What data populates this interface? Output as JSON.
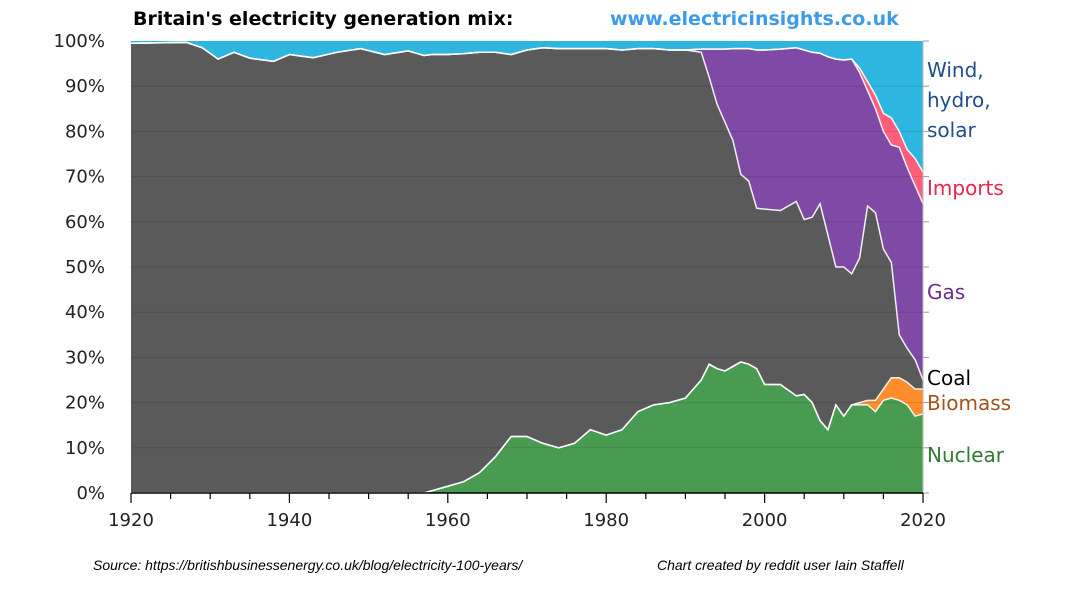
{
  "header": {
    "title": "Britain's electricity generation mix:",
    "url": "www.electricinsights.co.uk"
  },
  "footer": {
    "source": "Source: https://britishbusinessenergy.co.uk/blog/electricity-100-years/",
    "credit": "Chart created by reddit user Iain Staffell"
  },
  "chart_data": {
    "type": "area",
    "stacked": true,
    "title": "Britain's electricity generation mix:",
    "xlabel": "",
    "ylabel": "",
    "xlim": [
      1920,
      2020
    ],
    "ylim": [
      0,
      100
    ],
    "x_ticks": [
      "1920",
      "1940",
      "1960",
      "1980",
      "2000",
      "2020"
    ],
    "y_ticks": [
      "0%",
      "10%",
      "20%",
      "30%",
      "40%",
      "50%",
      "60%",
      "70%",
      "80%",
      "90%",
      "100%"
    ],
    "grid": true,
    "legend": "right (direct labels)",
    "x": [
      1920,
      1927,
      1929,
      1931,
      1933,
      1935,
      1938,
      1940,
      1943,
      1946,
      1949,
      1952,
      1955,
      1957,
      1958,
      1960,
      1962,
      1964,
      1966,
      1968,
      1970,
      1972,
      1974,
      1976,
      1978,
      1980,
      1982,
      1984,
      1986,
      1988,
      1990,
      1992,
      1993,
      1994,
      1995,
      1996,
      1997,
      1998,
      1999,
      2000,
      2002,
      2004,
      2005,
      2006,
      2007,
      2008,
      2009,
      2010,
      2011,
      2012,
      2013,
      2014,
      2015,
      2016,
      2017,
      2018,
      2019,
      2020
    ],
    "series": [
      {
        "name": "Nuclear",
        "color": "#4a9b52",
        "label_color": "#2e7d32",
        "values": [
          0,
          0,
          0,
          0,
          0,
          0,
          0,
          0,
          0,
          0,
          0,
          0,
          0,
          0,
          0.5,
          1.5,
          2.5,
          4.5,
          8,
          12.5,
          12.5,
          11,
          10,
          11,
          14,
          12.8,
          14,
          18,
          19.5,
          20,
          21,
          25,
          28.5,
          27.5,
          27,
          28,
          29,
          28.5,
          27.5,
          24,
          24,
          21.5,
          21.8,
          20,
          16,
          14,
          19.5,
          17,
          19.5,
          19.5,
          19.5,
          18,
          20.5,
          21,
          20.5,
          19.5,
          17,
          17.5
        ]
      },
      {
        "name": "Biomass",
        "color": "#ff8d2b",
        "label_color": "#a0531a",
        "values": [
          0,
          0,
          0,
          0,
          0,
          0,
          0,
          0,
          0,
          0,
          0,
          0,
          0,
          0,
          0,
          0,
          0,
          0,
          0,
          0,
          0,
          0,
          0,
          0,
          0,
          0,
          0,
          0,
          0,
          0,
          0,
          0,
          0,
          0,
          0,
          0,
          0,
          0,
          0,
          0,
          0,
          0,
          0,
          0,
          0,
          0,
          0,
          0,
          0,
          0.5,
          1,
          2.5,
          2.5,
          4.5,
          5,
          5,
          6,
          5.5
        ]
      },
      {
        "name": "Coal",
        "color": "#5a5a5a",
        "label_color": "#000000",
        "values": [
          99.5,
          99.7,
          98.5,
          96,
          97.5,
          96.2,
          95.5,
          97,
          96.3,
          97.5,
          98.3,
          97,
          97.8,
          96.8,
          96.5,
          95.5,
          94.7,
          93,
          89.5,
          84.5,
          85.5,
          87.5,
          88.3,
          87.3,
          84.3,
          85.5,
          84,
          80.3,
          78.8,
          78,
          77,
          72.5,
          63.5,
          58.5,
          55,
          50,
          41.5,
          40.5,
          35.5,
          38.8,
          38.5,
          43,
          38.7,
          41,
          48,
          43,
          30.5,
          33,
          29,
          32,
          43,
          41.5,
          31,
          25.5,
          9.5,
          7.5,
          6.5,
          2
        ]
      },
      {
        "name": "Gas",
        "color": "#7f4aa6",
        "label_color": "#6a2d91",
        "values": [
          0,
          0,
          0,
          0,
          0,
          0,
          0,
          0,
          0,
          0,
          0,
          0,
          0,
          0,
          0,
          0,
          0,
          0,
          0,
          0,
          0,
          0,
          0,
          0,
          0,
          0,
          0,
          0,
          0,
          0,
          0,
          0.7,
          6.2,
          12.2,
          16.2,
          20.3,
          27.8,
          29.3,
          35,
          35.2,
          35.7,
          34,
          37.5,
          36.5,
          33.3,
          39.5,
          46,
          45.8,
          47.5,
          41,
          25.5,
          23,
          26,
          26,
          41.5,
          40,
          38.5,
          39
        ]
      },
      {
        "name": "Imports",
        "color": "#ff5f7d",
        "label_color": "#e8254b",
        "values": [
          0,
          0,
          0,
          0,
          0,
          0,
          0,
          0,
          0,
          0,
          0,
          0,
          0,
          0,
          0,
          0,
          0,
          0,
          0,
          0,
          0,
          0,
          0,
          0,
          0,
          0,
          0,
          0,
          0,
          0,
          0,
          0,
          0,
          0,
          0,
          0,
          0,
          0,
          0,
          0,
          0,
          0,
          0,
          0,
          0,
          0,
          0,
          0,
          0,
          1,
          2,
          3,
          4,
          6,
          3.5,
          4,
          6,
          7
        ]
      },
      {
        "name": "Wind, hydro, solar",
        "color": "#2fb6e0",
        "label_color": "#1f4e8c",
        "values": [
          0.5,
          0.3,
          1.5,
          4,
          2.5,
          3.8,
          4.5,
          3,
          3.7,
          2.5,
          1.7,
          3,
          2.2,
          3.2,
          3,
          3,
          2.8,
          2.5,
          2.5,
          3,
          2,
          1.5,
          1.7,
          1.7,
          1.7,
          1.7,
          2,
          1.7,
          1.7,
          2,
          2,
          1.8,
          1.8,
          1.8,
          1.8,
          1.7,
          1.7,
          1.7,
          2,
          2,
          1.8,
          1.5,
          2,
          2.5,
          2.7,
          3.5,
          4,
          4.2,
          4,
          6,
          9,
          12,
          16,
          17,
          20,
          24,
          26,
          29
        ]
      }
    ],
    "labels": {
      "wind": [
        "Wind,",
        "hydro,",
        "solar"
      ],
      "imports": "Imports",
      "gas": "Gas",
      "coal": "Coal",
      "biomass": "Biomass",
      "nuclear": "Nuclear"
    }
  }
}
